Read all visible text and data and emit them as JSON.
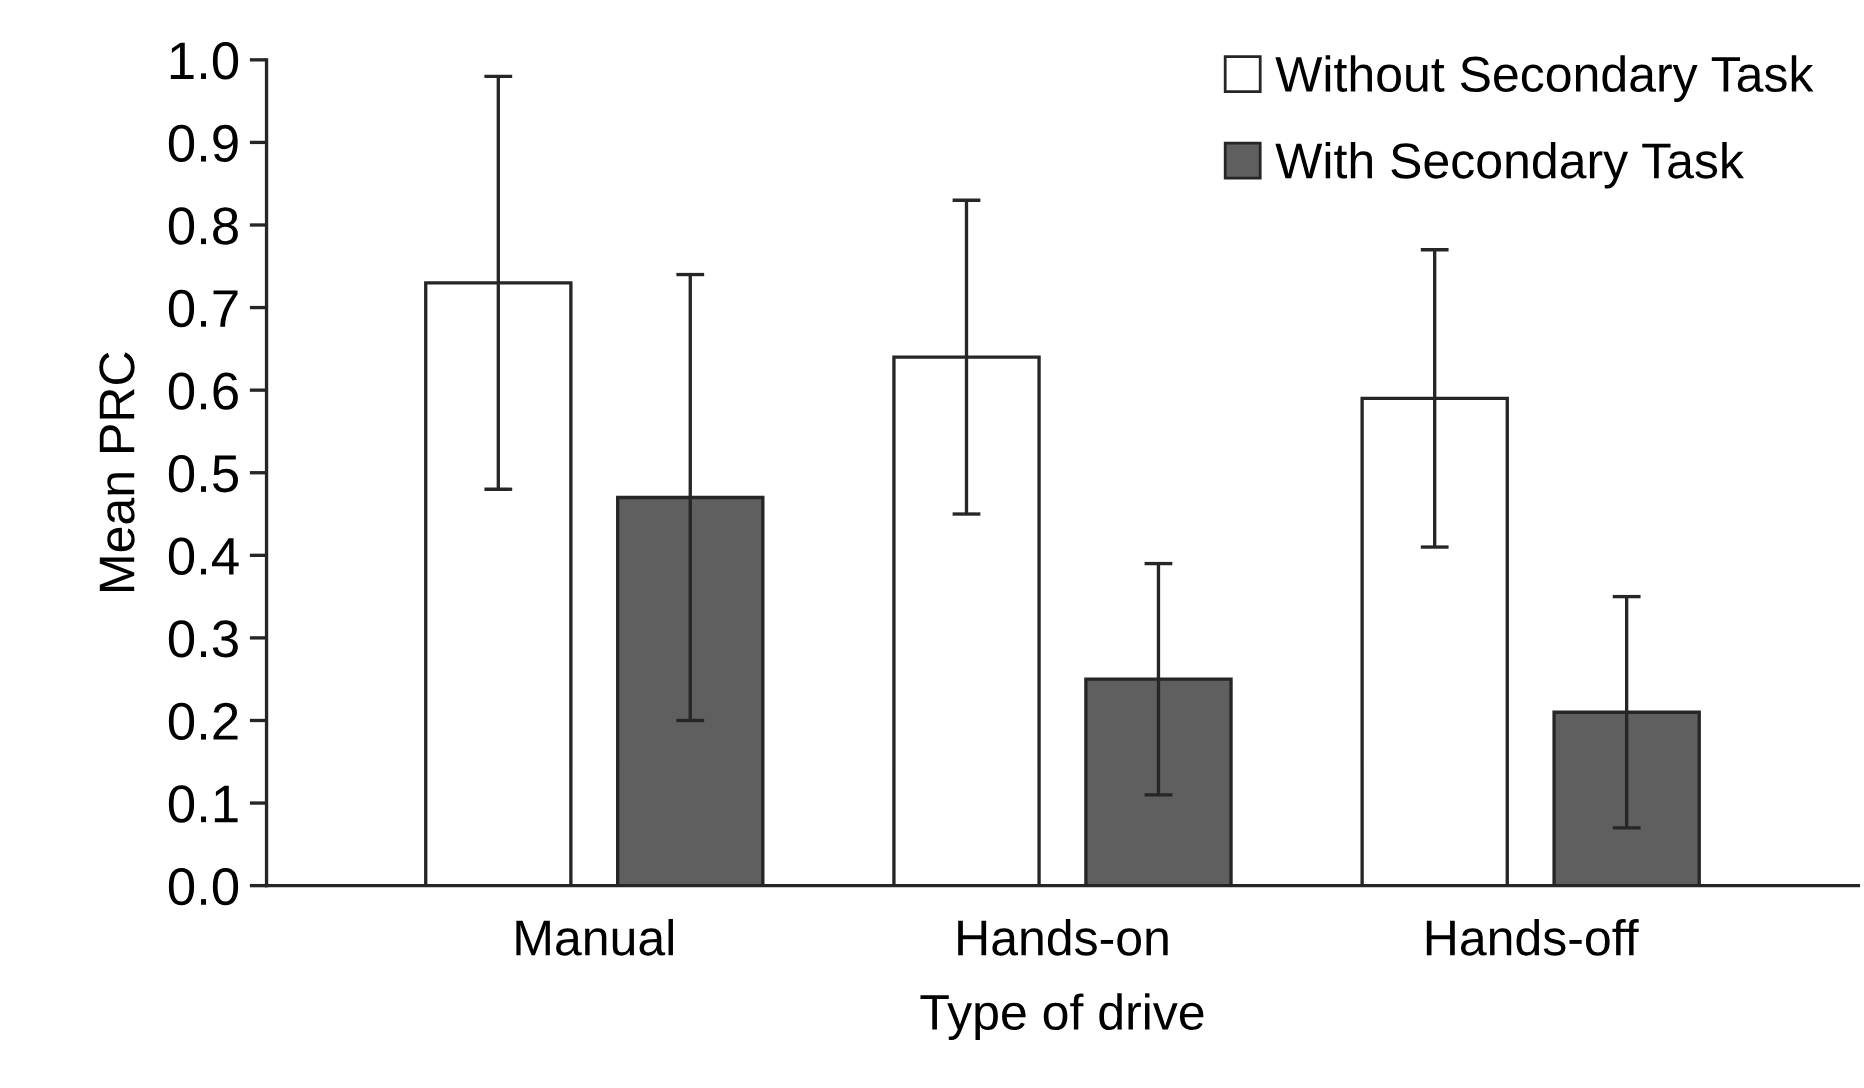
{
  "chart_data": {
    "type": "bar",
    "xlabel": "Type of drive",
    "ylabel": "Mean PRC",
    "categories": [
      "Manual",
      "Hands-on",
      "Hands-off"
    ],
    "series": [
      {
        "name": "Without Secondary Task",
        "color": "#ffffff",
        "values": [
          0.73,
          0.64,
          0.59
        ],
        "errors": [
          0.25,
          0.19,
          0.18
        ]
      },
      {
        "name": "With Secondary Task",
        "color": "#5f5f5f",
        "values": [
          0.47,
          0.25,
          0.21
        ],
        "errors": [
          0.27,
          0.14,
          0.14
        ]
      }
    ],
    "ylim": [
      0,
      1.0
    ],
    "yticks": [
      {
        "value": 0,
        "label": "0.0"
      },
      0.1,
      0.2,
      0.3,
      0.4,
      0.5,
      0.6,
      0.7,
      0.8,
      0.9,
      {
        "value": 1,
        "label": "1.0"
      }
    ],
    "grid": false,
    "legend": "top right"
  }
}
